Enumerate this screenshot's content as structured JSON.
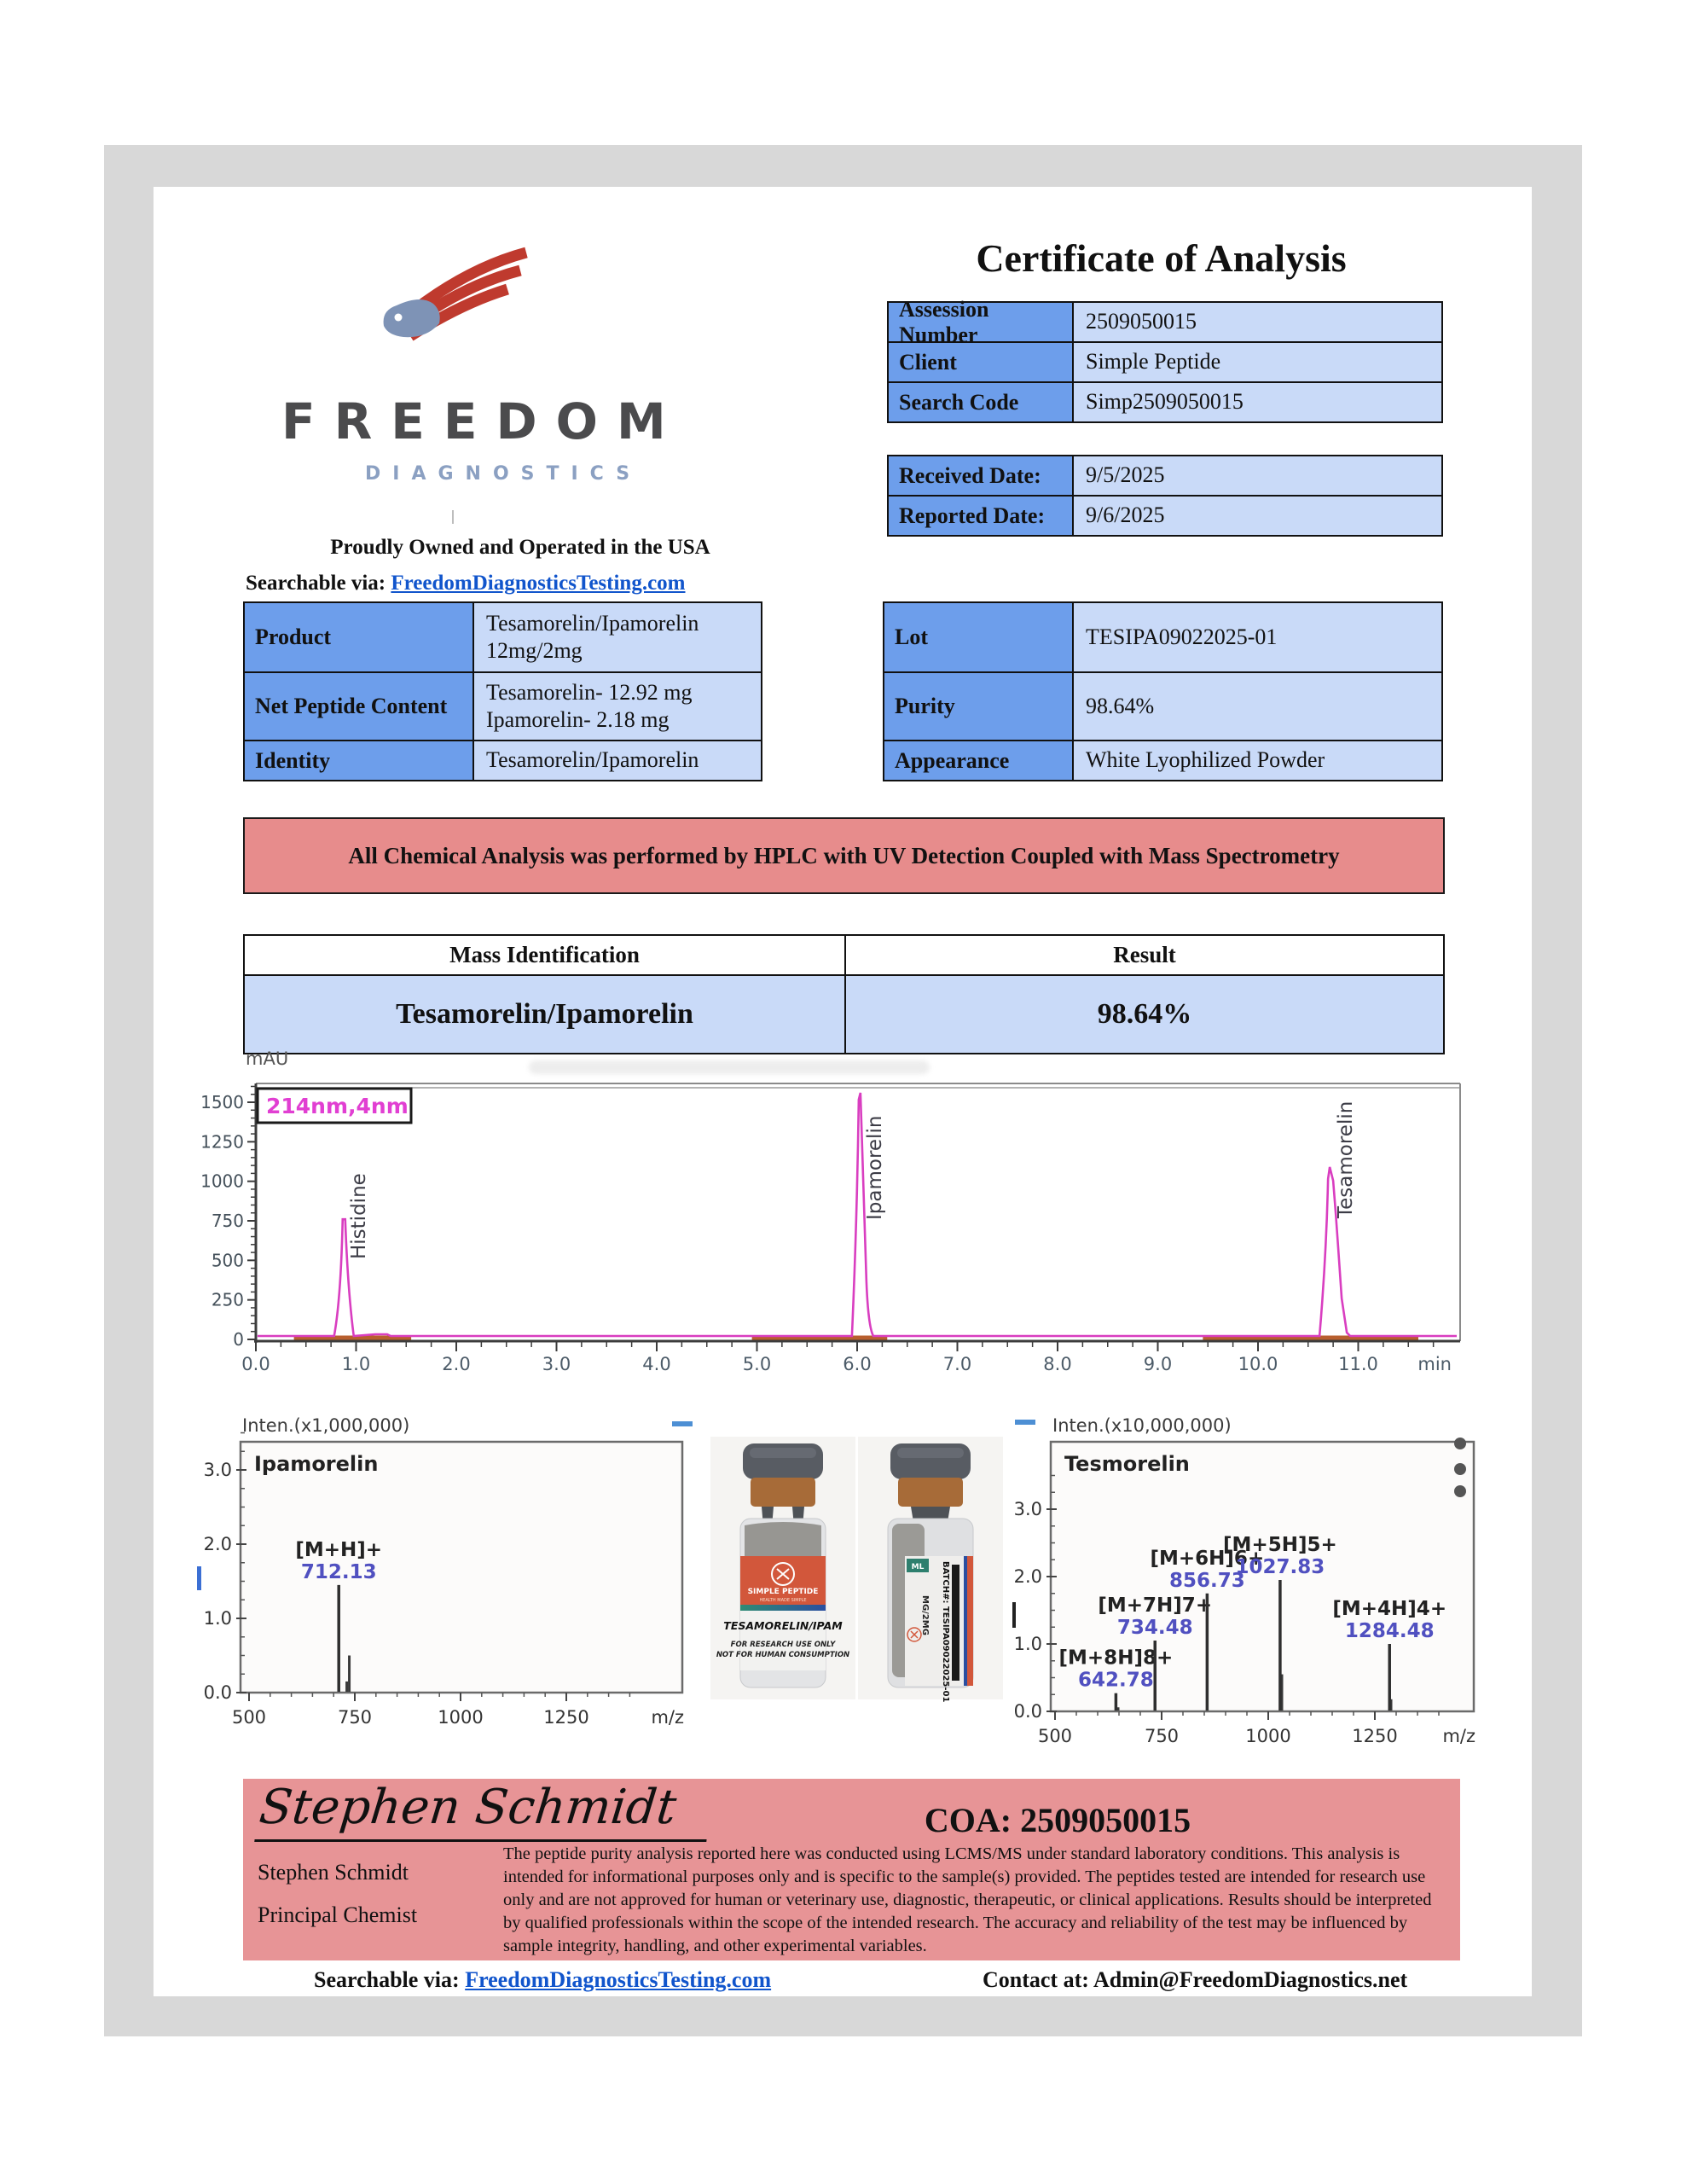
{
  "accent_colors": {
    "label_cell_blue": "#6d9eeb",
    "value_cell_blue": "#c9daf8",
    "banner_pink": "#e78c8c",
    "signature_pink": "#e79496",
    "curve_magenta": "#d93ec0",
    "link_blue": "#1155cc"
  },
  "logo": {
    "brand": "FREEDOM",
    "sub": "DIAGNOSTICS",
    "tagline": "Proudly Owned and Operated in the USA",
    "searchable_prefix": "Searchable via:",
    "searchable_link": "FreedomDiagnosticsTesting.com"
  },
  "title": "Certificate of Analysis",
  "id_table": {
    "rows": [
      {
        "label": "Assession Number",
        "value": "2509050015"
      },
      {
        "label": "Client",
        "value": "Simple Peptide"
      },
      {
        "label": "Search Code",
        "value": "Simp2509050015"
      }
    ]
  },
  "date_table": {
    "rows": [
      {
        "label": "Received Date:",
        "value": "9/5/2025"
      },
      {
        "label": "Reported Date:",
        "value": "9/6/2025"
      }
    ]
  },
  "product_table": {
    "rows": [
      {
        "label": "Product",
        "line1": "Tesamorelin/Ipamorelin",
        "line2": "12mg/2mg"
      },
      {
        "label": "Net Peptide Content",
        "line1": "Tesamorelin- 12.92 mg",
        "line2": "Ipamorelin- 2.18 mg"
      },
      {
        "label": "Identity",
        "line1": "Tesamorelin/Ipamorelin",
        "line2": ""
      }
    ]
  },
  "lot_table": {
    "rows": [
      {
        "label": "Lot",
        "value": "TESIPA09022025-01"
      },
      {
        "label": "Purity",
        "value": "98.64%"
      },
      {
        "label": "Appearance",
        "value": "White Lyophilized Powder"
      }
    ]
  },
  "banner_text": "All Chemical Analysis was performed by HPLC with UV Detection Coupled with Mass Spectrometry",
  "result_table": {
    "header_left": "Mass Identification",
    "header_right": "Result",
    "row_left": "Tesamorelin/Ipamorelin",
    "row_right": "98.64%"
  },
  "vial_front": {
    "brand": "SIMPLE PEPTIDE",
    "tagline": "HEALTH MADE SIMPLE",
    "product": "TESAMORELIN/IPAM",
    "line1": "FOR RESEARCH USE ONLY",
    "line2": "NOT FOR HUMAN CONSUMPTION"
  },
  "vial_side": {
    "batch": "BATCH#: TESIPA09022025-01",
    "dose": "MG/2MG",
    "volume": "ML"
  },
  "signature": {
    "script_name": "Stephen Schmidt",
    "printed_name": "Stephen Schmidt",
    "role": "Principal Chemist",
    "coa_heading": "COA: 2509050015",
    "disclaimer": "The peptide purity analysis reported here was conducted using LCMS/MS under standard laboratory conditions. This analysis is intended for informational purposes only and is specific to the sample(s) provided. The peptides tested are intended for research use only and are not approved for human or veterinary use, diagnostic, therapeutic, or clinical applications. Results should be interpreted by qualified professionals within the scope of the intended research. The accuracy and reliability of the test may be influenced by sample integrity, handling, and other experimental variables."
  },
  "footer": {
    "searchable_prefix": "Searchable via:",
    "searchable_link": "FreedomDiagnosticsTesting.com",
    "contact": "Contact at: Admin@FreedomDiagnostics.net"
  },
  "chart_data": [
    {
      "id": "hplc",
      "type": "line",
      "y_axis_label": "mAU",
      "channel": "214nm,4nm",
      "x_unit": "min",
      "xlim": [
        0,
        12
      ],
      "x_ticks": [
        0,
        1,
        2,
        3,
        4,
        5,
        6,
        7,
        8,
        9,
        10,
        11
      ],
      "ylim": [
        0,
        1650
      ],
      "y_ticks": [
        0,
        250,
        500,
        750,
        1000,
        1250,
        1500
      ],
      "peaks": [
        {
          "name": "Histidine",
          "rt_min": 0.9,
          "height_mau": 760
        },
        {
          "name": "Ipamorelin",
          "rt_min": 6.05,
          "height_mau": 1560
        },
        {
          "name": "Tesamorelin",
          "rt_min": 10.75,
          "height_mau": 1090
        }
      ],
      "baseline_segments_min": [
        [
          0.38,
          1.55
        ],
        [
          4.95,
          6.3
        ],
        [
          9.45,
          11.6
        ]
      ]
    },
    {
      "id": "ms_ipamorelin",
      "type": "bar",
      "title": "Ipamorelin",
      "intensity_label": "Inten.(x1,000,000)",
      "x_unit": "m/z",
      "x_ticks": [
        500,
        750,
        1000,
        1250
      ],
      "y_ticks": [
        0.0,
        1.0,
        2.0,
        3.0
      ],
      "peaks": [
        {
          "mz": 712.13,
          "intensity": 1.45,
          "ion": "[M+H]+",
          "value_label": "712.13"
        }
      ],
      "minor_peaks": [
        {
          "mz": 737,
          "intensity": 0.5
        },
        {
          "mz": 731,
          "intensity": 0.15
        }
      ]
    },
    {
      "id": "ms_tesamorelin",
      "type": "bar",
      "title": "Tesmorelin",
      "intensity_label": "Inten.(x10,000,000)",
      "x_unit": "m/z",
      "x_ticks": [
        500,
        750,
        1000,
        1250
      ],
      "y_ticks": [
        0.0,
        1.0,
        2.0,
        3.0
      ],
      "peaks": [
        {
          "mz": 642.78,
          "intensity": 0.27,
          "ion": "[M+8H]8+",
          "value_label": "642.78"
        },
        {
          "mz": 734.48,
          "intensity": 1.05,
          "ion": "[M+7H]7+",
          "value_label": "734.48"
        },
        {
          "mz": 856.73,
          "intensity": 1.75,
          "ion": "[M+6H]6+",
          "value_label": "856.73"
        },
        {
          "mz": 1027.83,
          "intensity": 1.95,
          "ion": "[M+5H]5+",
          "value_label": "1027.83"
        },
        {
          "mz": 1284.48,
          "intensity": 1.0,
          "ion": "[M+4H]4+",
          "value_label": "1284.48"
        }
      ],
      "minor_peaks": [
        {
          "mz": 1032,
          "intensity": 0.55
        },
        {
          "mz": 1288,
          "intensity": 0.18
        },
        {
          "mz": 648,
          "intensity": 0.06
        }
      ]
    }
  ]
}
